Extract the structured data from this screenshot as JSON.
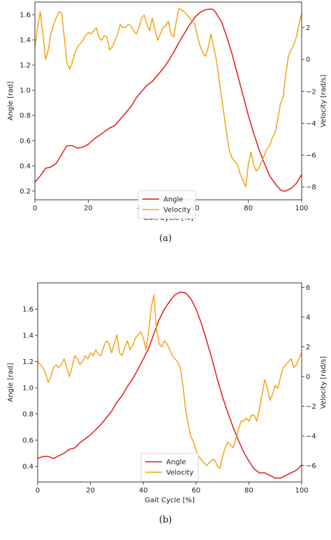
{
  "chart_data": [
    {
      "type": "line",
      "caption": "(a)",
      "xlabel": "Gait Cycle [%]",
      "ylabel": "Angle [rad]",
      "y2label": "Velocity [rad/s]",
      "xlim": [
        0,
        100
      ],
      "ylim": [
        0.13,
        1.7
      ],
      "y2lim": [
        -8.8,
        3.6
      ],
      "xticks": [
        "0",
        "20",
        "40",
        "60",
        "80",
        "100"
      ],
      "yticks": [
        "0.2",
        "0.4",
        "0.6",
        "0.8",
        "1.0",
        "1.2",
        "1.4",
        "1.6"
      ],
      "y2ticks": [
        "−8",
        "−6",
        "−4",
        "−2",
        "0",
        "2"
      ],
      "grid": false,
      "legend": "bottom-center",
      "series": [
        {
          "name": "Angle",
          "color": "#e31a1c",
          "axis": "left",
          "x": [
            0,
            2,
            4,
            6,
            8,
            10,
            12,
            14,
            16,
            18,
            20,
            22,
            24,
            26,
            28,
            30,
            32,
            34,
            36,
            38,
            40,
            42,
            44,
            46,
            48,
            50,
            52,
            54,
            56,
            58,
            60,
            62,
            64,
            66,
            67,
            68,
            70,
            72,
            74,
            76,
            78,
            80,
            82,
            84,
            86,
            88,
            90,
            92,
            93,
            94,
            96,
            98,
            100
          ],
          "y": [
            0.27,
            0.32,
            0.38,
            0.39,
            0.42,
            0.49,
            0.56,
            0.56,
            0.54,
            0.55,
            0.57,
            0.61,
            0.64,
            0.67,
            0.7,
            0.72,
            0.77,
            0.82,
            0.87,
            0.94,
            0.99,
            1.04,
            1.07,
            1.12,
            1.17,
            1.23,
            1.3,
            1.38,
            1.45,
            1.52,
            1.58,
            1.62,
            1.64,
            1.645,
            1.64,
            1.61,
            1.54,
            1.42,
            1.28,
            1.12,
            0.96,
            0.8,
            0.66,
            0.53,
            0.42,
            0.32,
            0.26,
            0.21,
            0.2,
            0.2,
            0.22,
            0.26,
            0.33
          ]
        },
        {
          "name": "Velocity",
          "color": "#f5a316",
          "axis": "right",
          "x": [
            0,
            1,
            2,
            3,
            4,
            5,
            6,
            7,
            8,
            9,
            10,
            11,
            12,
            13,
            14,
            15,
            16,
            17,
            18,
            19,
            20,
            21,
            22,
            23,
            24,
            25,
            26,
            27,
            28,
            29,
            30,
            31,
            32,
            33,
            34,
            35,
            36,
            37,
            38,
            39,
            40,
            41,
            42,
            43,
            44,
            45,
            46,
            47,
            48,
            49,
            50,
            51,
            52,
            53,
            54,
            55,
            56,
            57,
            58,
            59,
            60,
            61,
            62,
            63,
            64,
            65,
            66,
            67,
            68,
            69,
            70,
            71,
            72,
            73,
            74,
            75,
            76,
            77,
            78,
            79,
            80,
            81,
            82,
            83,
            84,
            85,
            86,
            87,
            88,
            89,
            90,
            91,
            92,
            93,
            94,
            95,
            96,
            97,
            98,
            99,
            100
          ],
          "y": [
            0.8,
            2.0,
            3.0,
            1.6,
            0.0,
            0.6,
            1.6,
            2.2,
            2.6,
            3.0,
            2.9,
            1.4,
            -0.2,
            -0.6,
            -0.2,
            0.4,
            0.8,
            1.0,
            1.2,
            1.5,
            1.7,
            1.6,
            1.8,
            2.0,
            1.4,
            1.2,
            1.5,
            1.4,
            0.6,
            0.8,
            1.2,
            1.6,
            2.2,
            2.0,
            2.0,
            2.2,
            2.1,
            1.8,
            1.6,
            2.0,
            2.6,
            2.8,
            2.2,
            1.8,
            2.6,
            1.9,
            1.2,
            1.6,
            2.0,
            2.1,
            2.4,
            1.6,
            1.4,
            2.4,
            3.2,
            3.1,
            3.0,
            2.8,
            2.6,
            2.4,
            2.2,
            1.4,
            0.8,
            0.4,
            0.2,
            0.8,
            1.6,
            0.8,
            0.0,
            -1.2,
            -2.4,
            -3.6,
            -4.8,
            -5.8,
            -6.2,
            -6.4,
            -6.6,
            -7.2,
            -7.6,
            -8.0,
            -6.6,
            -5.8,
            -6.6,
            -7.0,
            -6.8,
            -6.4,
            -6.0,
            -5.6,
            -5.4,
            -4.9,
            -4.6,
            -3.8,
            -2.8,
            -2.4,
            -1.0,
            0.2,
            0.6,
            0.9,
            1.4,
            2.2,
            2.9
          ]
        }
      ]
    },
    {
      "type": "line",
      "caption": "(b)",
      "xlabel": "Gait Cycle [%]",
      "ylabel": "Angle [rad]",
      "y2label": "Velocity [rad/s]",
      "xlim": [
        0,
        100
      ],
      "ylim": [
        0.28,
        1.8
      ],
      "y2lim": [
        -7.1,
        6.3
      ],
      "xticks": [
        "0",
        "20",
        "40",
        "60",
        "80",
        "100"
      ],
      "yticks": [
        "0.4",
        "0.6",
        "0.8",
        "1.0",
        "1.2",
        "1.4",
        "1.6"
      ],
      "y2ticks": [
        "−6",
        "−4",
        "−2",
        "0",
        "2",
        "4",
        "6"
      ],
      "grid": false,
      "legend": "bottom-center",
      "series": [
        {
          "name": "Angle",
          "color": "#e31a1c",
          "axis": "left",
          "x": [
            0,
            2,
            4,
            6,
            8,
            10,
            12,
            14,
            16,
            18,
            20,
            22,
            24,
            26,
            28,
            30,
            32,
            34,
            36,
            38,
            40,
            42,
            44,
            46,
            48,
            50,
            52,
            54,
            56,
            58,
            60,
            62,
            64,
            66,
            68,
            70,
            72,
            74,
            76,
            78,
            80,
            82,
            84,
            86,
            88,
            90,
            92,
            94,
            96,
            98,
            100
          ],
          "y": [
            0.46,
            0.475,
            0.475,
            0.46,
            0.48,
            0.5,
            0.53,
            0.54,
            0.58,
            0.61,
            0.64,
            0.68,
            0.72,
            0.77,
            0.82,
            0.89,
            0.94,
            1.01,
            1.07,
            1.14,
            1.22,
            1.3,
            1.41,
            1.52,
            1.6,
            1.66,
            1.71,
            1.73,
            1.725,
            1.68,
            1.6,
            1.49,
            1.36,
            1.22,
            1.07,
            0.93,
            0.81,
            0.7,
            0.6,
            0.51,
            0.44,
            0.38,
            0.35,
            0.35,
            0.33,
            0.31,
            0.31,
            0.33,
            0.35,
            0.37,
            0.41
          ]
        },
        {
          "name": "Velocity",
          "color": "#f5a316",
          "axis": "right",
          "x": [
            0,
            1,
            2,
            3,
            4,
            5,
            6,
            7,
            8,
            9,
            10,
            11,
            12,
            13,
            14,
            15,
            16,
            17,
            18,
            19,
            20,
            21,
            22,
            23,
            24,
            25,
            26,
            27,
            28,
            29,
            30,
            31,
            32,
            33,
            34,
            35,
            36,
            37,
            38,
            39,
            40,
            41,
            42,
            43,
            44,
            45,
            46,
            47,
            48,
            49,
            50,
            51,
            52,
            53,
            54,
            55,
            56,
            57,
            58,
            59,
            60,
            61,
            62,
            63,
            64,
            65,
            66,
            67,
            68,
            69,
            70,
            71,
            72,
            73,
            74,
            75,
            76,
            77,
            78,
            79,
            80,
            81,
            82,
            83,
            84,
            85,
            86,
            87,
            88,
            89,
            90,
            91,
            92,
            93,
            94,
            95,
            96,
            97,
            98,
            99,
            100
          ],
          "y": [
            1.0,
            0.8,
            0.6,
            0.2,
            -0.4,
            0.0,
            0.6,
            0.8,
            0.6,
            0.8,
            1.2,
            0.6,
            0.0,
            0.6,
            1.4,
            1.2,
            0.8,
            1.0,
            1.4,
            1.2,
            1.6,
            1.4,
            1.8,
            1.5,
            1.4,
            2.0,
            2.4,
            2.2,
            1.6,
            2.2,
            2.8,
            1.6,
            1.4,
            2.0,
            2.4,
            1.8,
            2.1,
            2.6,
            2.8,
            3.0,
            2.6,
            1.8,
            3.0,
            4.6,
            5.5,
            3.2,
            2.2,
            2.0,
            2.4,
            2.2,
            1.8,
            1.4,
            1.2,
            1.0,
            0.6,
            -0.6,
            -2.2,
            -3.2,
            -4.0,
            -4.4,
            -5.0,
            -5.4,
            -5.6,
            -5.8,
            -6.0,
            -5.8,
            -5.6,
            -5.6,
            -6.0,
            -6.2,
            -5.4,
            -4.8,
            -4.4,
            -4.6,
            -4.8,
            -4.2,
            -3.6,
            -3.0,
            -3.0,
            -2.8,
            -3.0,
            -2.6,
            -2.6,
            -3.0,
            -2.2,
            -1.2,
            -0.2,
            -0.8,
            -1.6,
            -1.2,
            -0.6,
            -0.8,
            0.0,
            0.6,
            0.8,
            1.0,
            1.2,
            0.6,
            0.8,
            1.2,
            1.6
          ]
        }
      ]
    }
  ]
}
